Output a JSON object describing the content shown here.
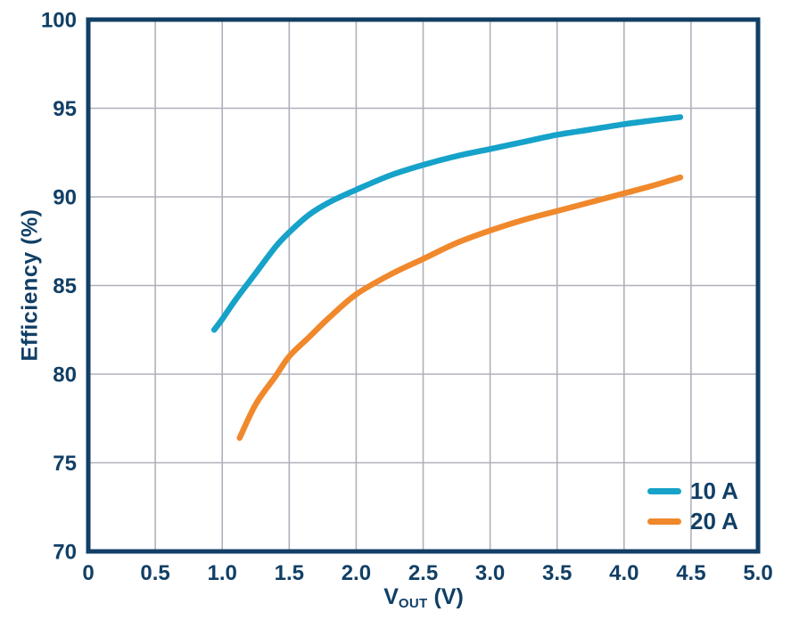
{
  "chart_data": {
    "type": "line",
    "title": "",
    "xlabel": {
      "main": "V",
      "sub": "OUT",
      "unit": "(V)"
    },
    "ylabel": "Efficiency (%)",
    "xlim": [
      0,
      5
    ],
    "ylim": [
      70,
      100
    ],
    "x_tick_values": [
      0,
      0.5,
      1.0,
      1.5,
      2.0,
      2.5,
      3.0,
      3.5,
      4.0,
      4.5,
      5.0
    ],
    "x_tick_labels": [
      "0",
      "0.5",
      "1.0",
      "1.5",
      "2.0",
      "2.5",
      "3.0",
      "3.5",
      "4.0",
      "4.5",
      "5.0"
    ],
    "y_tick_values": [
      70,
      75,
      80,
      85,
      90,
      95,
      100
    ],
    "y_tick_labels": [
      "70",
      "75",
      "80",
      "85",
      "90",
      "95",
      "100"
    ],
    "grid": true,
    "legend_position": "bottom-right",
    "series": [
      {
        "name": "10 A",
        "color": "#16A2C9",
        "points": [
          [
            0.94,
            82.5
          ],
          [
            1.0,
            83.1
          ],
          [
            1.1,
            84.2
          ],
          [
            1.25,
            85.7
          ],
          [
            1.4,
            87.2
          ],
          [
            1.5,
            88.0
          ],
          [
            1.65,
            89.0
          ],
          [
            1.8,
            89.7
          ],
          [
            2.0,
            90.4
          ],
          [
            2.25,
            91.2
          ],
          [
            2.5,
            91.8
          ],
          [
            2.75,
            92.3
          ],
          [
            3.0,
            92.7
          ],
          [
            3.25,
            93.1
          ],
          [
            3.5,
            93.5
          ],
          [
            3.75,
            93.8
          ],
          [
            4.0,
            94.1
          ],
          [
            4.2,
            94.3
          ],
          [
            4.42,
            94.5
          ]
        ]
      },
      {
        "name": "20 A",
        "color": "#F0882C",
        "points": [
          [
            1.13,
            76.4
          ],
          [
            1.25,
            78.3
          ],
          [
            1.4,
            79.9
          ],
          [
            1.5,
            81.0
          ],
          [
            1.65,
            82.1
          ],
          [
            1.8,
            83.2
          ],
          [
            2.0,
            84.5
          ],
          [
            2.25,
            85.6
          ],
          [
            2.5,
            86.5
          ],
          [
            2.75,
            87.4
          ],
          [
            3.0,
            88.1
          ],
          [
            3.25,
            88.7
          ],
          [
            3.5,
            89.2
          ],
          [
            3.75,
            89.7
          ],
          [
            4.0,
            90.2
          ],
          [
            4.2,
            90.6
          ],
          [
            4.42,
            91.1
          ]
        ]
      }
    ]
  },
  "colors": {
    "axis_navy": "#113F66",
    "grid_gray": "#B0B0BC",
    "background": "#FFFFFF",
    "series_10a": "#16A2C9",
    "series_20a": "#F0882C"
  }
}
